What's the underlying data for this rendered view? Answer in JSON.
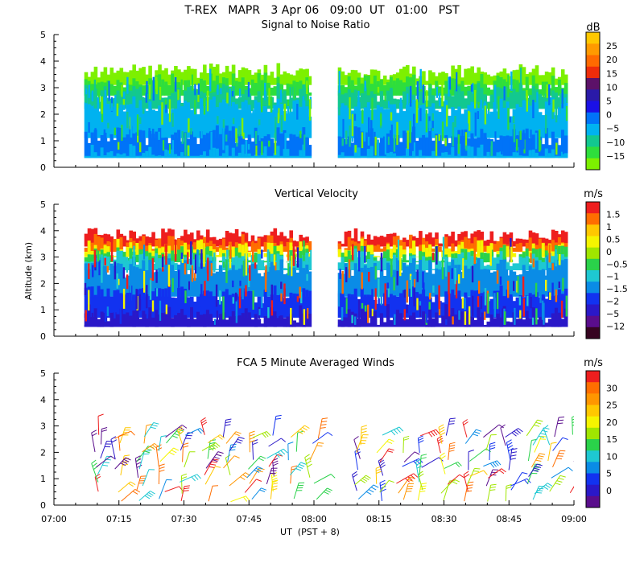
{
  "header": {
    "title": "T-REX   MAPR   3 Apr 06   09:00  UT   01:00   PST"
  },
  "chart_data": {
    "type": "heatmap",
    "figure_title": "T-REX   MAPR   3 Apr 06   09:00  UT   01:00   PST",
    "xlabel": "UT  (PST + 8)",
    "ylabel": "Altitude (km)",
    "x_ticks": [
      "07:00",
      "07:15",
      "07:30",
      "07:45",
      "08:00",
      "08:15",
      "08:30",
      "08:45",
      "09:00"
    ],
    "x_range_minutes": [
      420,
      540
    ],
    "y_ticks": [
      0,
      1,
      2,
      3,
      4,
      5
    ],
    "ylim": [
      0,
      5
    ],
    "data_gap_minutes": [
      480,
      485
    ],
    "panels": [
      {
        "id": "snr",
        "title": "Signal to Noise Ratio",
        "units": "dB",
        "colorbar_ticks": [
          "25",
          "20",
          "15",
          "10",
          "5",
          "0",
          "−5",
          "−10",
          "−15"
        ],
        "colorbar_colors": [
          "#7df000",
          "#2ede3c",
          "#12c890",
          "#00b2f0",
          "#0073f8",
          "#1a10e6",
          "#2a1aa8",
          "#5c1168",
          "#ee2c0a",
          "#ff6a00",
          "#ff9a00",
          "#ffc800"
        ],
        "layers": [
          {
            "top_km": 3.6,
            "color": "#7df000"
          },
          {
            "top_km": 3.2,
            "color": "#2ede3c"
          },
          {
            "top_km": 2.8,
            "color": "#12c890"
          },
          {
            "top_km": 2.3,
            "color": "#00b2f0"
          },
          {
            "top_km": 1.2,
            "color": "#0073f8"
          },
          {
            "top_km": 0.5,
            "color": "#00b2f0"
          }
        ],
        "data_bottom_km": 0.35
      },
      {
        "id": "vertical_velocity",
        "title": "Vertical Velocity",
        "units": "m/s",
        "colorbar_ticks": [
          "1.5",
          "1",
          "0.5",
          "0",
          "−0.5",
          "−1",
          "−1.5",
          "−2",
          "−5",
          "−12"
        ],
        "colorbar_colors": [
          "#360420",
          "#5a0d8c",
          "#2a18c8",
          "#1232f0",
          "#0a8ce6",
          "#1ec8d2",
          "#2ad24a",
          "#a0e600",
          "#f5f500",
          "#ffc800",
          "#ff6e00",
          "#ee1e1e"
        ],
        "layers": [
          {
            "top_km": 3.8,
            "color": "#ee1e1e"
          },
          {
            "top_km": 3.5,
            "color": "#ff6e00"
          },
          {
            "top_km": 3.3,
            "color": "#f5f500"
          },
          {
            "top_km": 3.1,
            "color": "#2ad24a"
          },
          {
            "top_km": 2.9,
            "color": "#1ec8d2"
          },
          {
            "top_km": 2.6,
            "color": "#0a8ce6"
          },
          {
            "top_km": 1.6,
            "color": "#1232f0"
          },
          {
            "top_km": 0.8,
            "color": "#2a18c8"
          }
        ],
        "data_bottom_km": 0.35
      },
      {
        "id": "winds",
        "title": "FCA 5 Minute Averaged Winds",
        "units": "m/s",
        "colorbar_ticks": [
          "30",
          "25",
          "20",
          "15",
          "10",
          "5",
          "0"
        ],
        "colorbar_colors": [
          "#5a0d8c",
          "#2a18c8",
          "#1232f0",
          "#0a8ce6",
          "#1ec8d2",
          "#2ad24a",
          "#a0e600",
          "#f5f500",
          "#ffc800",
          "#ff9600",
          "#ff6e00",
          "#ee1e1e"
        ],
        "barb_altitudes_km": [
          0.2,
          0.5,
          0.8,
          1.1,
          1.4,
          1.7,
          2.0,
          2.3,
          2.6
        ],
        "barb_times_minutes": [
          430,
          435,
          440,
          445,
          450,
          455,
          460,
          465,
          470,
          475,
          480,
          490,
          495,
          500,
          505,
          510,
          515,
          520,
          525,
          530,
          535,
          540
        ]
      }
    ]
  }
}
